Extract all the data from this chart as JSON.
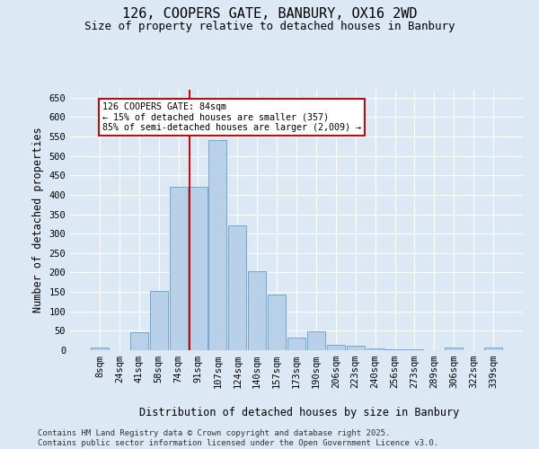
{
  "title1": "126, COOPERS GATE, BANBURY, OX16 2WD",
  "title2": "Size of property relative to detached houses in Banbury",
  "xlabel": "Distribution of detached houses by size in Banbury",
  "ylabel": "Number of detached properties",
  "categories": [
    "8sqm",
    "24sqm",
    "41sqm",
    "58sqm",
    "74sqm",
    "91sqm",
    "107sqm",
    "124sqm",
    "140sqm",
    "157sqm",
    "173sqm",
    "190sqm",
    "206sqm",
    "223sqm",
    "240sqm",
    "256sqm",
    "273sqm",
    "289sqm",
    "306sqm",
    "322sqm",
    "339sqm"
  ],
  "values": [
    7,
    0,
    46,
    153,
    420,
    420,
    540,
    322,
    203,
    143,
    33,
    49,
    13,
    12,
    5,
    3,
    3,
    0,
    7,
    0,
    7
  ],
  "bar_color": "#b8d0e8",
  "bar_edge_color": "#6fa8d4",
  "vline_x": 4.55,
  "vline_color": "#cc0000",
  "annotation_line1": "126 COOPERS GATE: 84sqm",
  "annotation_line2": "← 15% of detached houses are smaller (357)",
  "annotation_line3": "85% of semi-detached houses are larger (2,009) →",
  "annotation_box_color": "#cc0000",
  "annotation_box_bg": "#ffffff",
  "ylim": [
    0,
    670
  ],
  "yticks": [
    0,
    50,
    100,
    150,
    200,
    250,
    300,
    350,
    400,
    450,
    500,
    550,
    600,
    650
  ],
  "footer_text": "Contains HM Land Registry data © Crown copyright and database right 2025.\nContains public sector information licensed under the Open Government Licence v3.0.",
  "background_color": "#dce9f5",
  "title_fontsize": 11,
  "subtitle_fontsize": 9,
  "axis_label_fontsize": 8.5,
  "tick_fontsize": 7.5,
  "footer_fontsize": 6.5
}
